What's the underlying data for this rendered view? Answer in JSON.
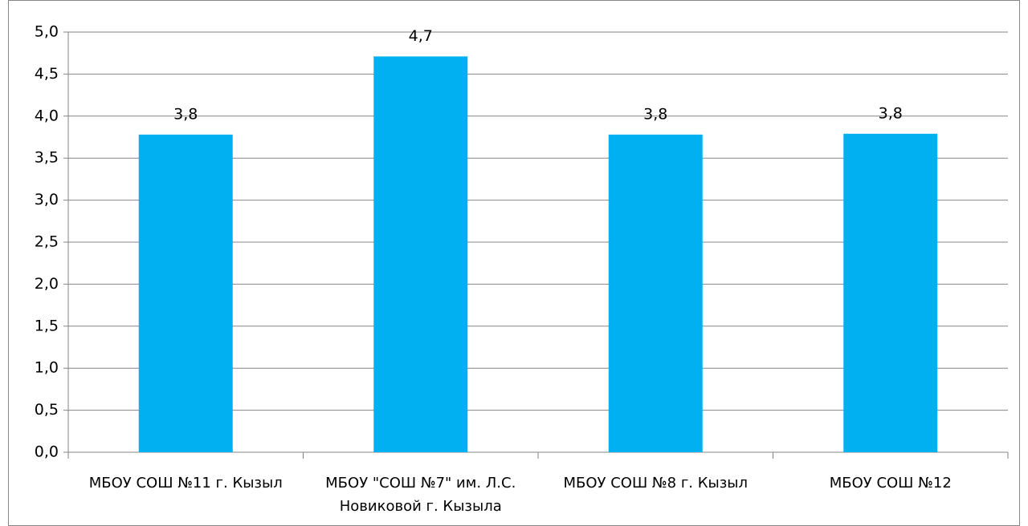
{
  "chart_data": {
    "type": "bar",
    "categories": [
      "МБОУ СОШ №11 г. Кызыл",
      "МБОУ \"СОШ №7\" им. Л.С. Новиковой г. Кызыла",
      "МБОУ СОШ №8 г. Кызыл",
      "МБОУ СОШ №12"
    ],
    "values": [
      3.78,
      4.71,
      3.78,
      3.79
    ],
    "value_labels": [
      "3,8",
      "4,7",
      "3,8",
      "3,8"
    ],
    "color": "#00b0f0",
    "ylim": [
      0,
      5
    ],
    "yticks": [
      {
        "value": 0,
        "label": "0,0"
      },
      {
        "value": 0.5,
        "label": "0,5"
      },
      {
        "value": 1,
        "label": "1,0"
      },
      {
        "value": 1.5,
        "label": "1,5"
      },
      {
        "value": 2,
        "label": "2,0"
      },
      {
        "value": 2.5,
        "label": "2,5"
      },
      {
        "value": 3,
        "label": "3,0"
      },
      {
        "value": 3.5,
        "label": "3,5"
      },
      {
        "value": 4,
        "label": "4,0"
      },
      {
        "value": 4.5,
        "label": "4,5"
      },
      {
        "value": 5,
        "label": "5,0"
      }
    ],
    "grid": true
  }
}
